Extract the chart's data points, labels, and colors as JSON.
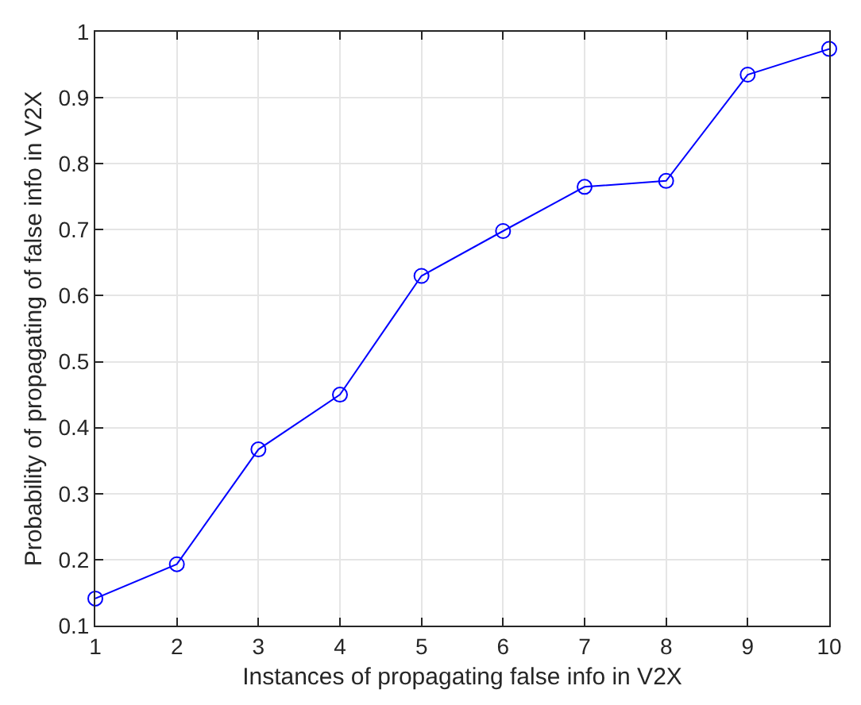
{
  "chart_data": {
    "type": "line",
    "xlabel": "Instances of propagating false info in V2X",
    "ylabel": "Probability of propagating of false info in V2X",
    "x": [
      1,
      2,
      3,
      4,
      5,
      6,
      7,
      8,
      9,
      10
    ],
    "series": [
      {
        "color": "#0000ff",
        "values": [
          0.141,
          0.193,
          0.367,
          0.45,
          0.63,
          0.698,
          0.765,
          0.774,
          0.935,
          0.974
        ]
      }
    ],
    "xlim": [
      1,
      10
    ],
    "xticks": [
      1,
      2,
      3,
      4,
      5,
      6,
      7,
      8,
      9,
      10
    ],
    "ylim": [
      0.1,
      1
    ],
    "yticks": [
      0.1,
      0.2,
      0.3,
      0.4,
      0.5,
      0.6,
      0.7,
      0.8,
      0.9,
      1
    ],
    "grid": true,
    "marker": "circle",
    "line_style": "solid"
  }
}
